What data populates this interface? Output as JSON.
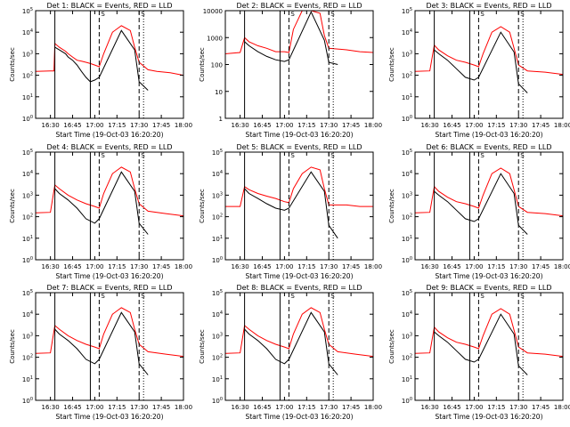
{
  "figure": {
    "background": "#ffffff",
    "event_color": "#000000",
    "lld_color": "#ff0000",
    "xlabel_text": "Start Time (19-Oct-03 16:20:20)",
    "ylabel_text": "Counts/sec",
    "flag_marker": "S"
  },
  "chart_data": [
    {
      "type": "line",
      "title": "Det 1: BLACK = Events, RED = LLD",
      "scale": "log",
      "ylim": [
        1,
        100000
      ],
      "yticks": [
        "10^0",
        "10^1",
        "10^2",
        "10^3",
        "10^4",
        "10^5"
      ],
      "xlim": [
        16.333,
        18.0
      ],
      "xticks": [
        "16:30",
        "16:45",
        "17:00",
        "17:15",
        "17:30",
        "17:45",
        "18:00"
      ],
      "xlabel": "Start Time (19-Oct-03 16:20:20)",
      "ylabel": "Counts/sec",
      "vlines": {
        "solid": [
          16.55,
          16.95
        ],
        "dashed": [
          17.05,
          17.5
        ],
        "dotted": [
          17.55
        ]
      },
      "series": [
        {
          "name": "LLD",
          "color": "#ff0000",
          "x": [
            16.33,
            16.5,
            16.54,
            16.55,
            16.6,
            16.67,
            16.7,
            16.75,
            16.8,
            16.85,
            16.9,
            16.95,
            17.0,
            17.05,
            17.1,
            17.2,
            17.3,
            17.4,
            17.45,
            17.5,
            17.6,
            17.7,
            17.85,
            18.0
          ],
          "y": [
            150,
            160,
            160,
            3000,
            2000,
            1300,
            1000,
            700,
            500,
            450,
            400,
            350,
            300,
            250,
            1000,
            10000,
            20000,
            12000,
            2000,
            400,
            180,
            150,
            130,
            100
          ]
        },
        {
          "name": "Events",
          "color": "#000000",
          "x": [
            16.55,
            16.6,
            16.67,
            16.7,
            16.75,
            16.8,
            16.85,
            16.9,
            16.95,
            17.0,
            17.05,
            17.3,
            17.45,
            17.5,
            17.6
          ],
          "y": [
            2000,
            1500,
            1000,
            700,
            500,
            300,
            150,
            80,
            50,
            60,
            80,
            12000,
            1500,
            50,
            20
          ]
        }
      ]
    },
    {
      "type": "line",
      "title": "Det 2: BLACK = Events, RED = LLD",
      "scale": "log",
      "ylim": [
        1,
        10000
      ],
      "yticks": [
        "1",
        "10",
        "100",
        "1000",
        "10000"
      ],
      "xlim": [
        16.333,
        18.0
      ],
      "xticks": [
        "16:30",
        "16:45",
        "17:00",
        "17:15",
        "17:30",
        "17:45",
        "18:00"
      ],
      "xlabel": "Start Time (19-Oct-03 16:20:20)",
      "ylabel": "Counts/sec",
      "vlines": {
        "solid": [
          16.55,
          16.95
        ],
        "dashed": [
          17.05,
          17.5
        ],
        "dotted": [
          17.55
        ]
      },
      "series": [
        {
          "name": "LLD",
          "color": "#ff0000",
          "x": [
            16.33,
            16.5,
            16.55,
            16.6,
            16.7,
            16.8,
            16.9,
            17.0,
            17.05,
            17.1,
            17.2,
            17.3,
            17.4,
            17.45,
            17.5,
            17.7,
            17.85,
            18.0
          ],
          "y": [
            250,
            280,
            1000,
            700,
            500,
            400,
            300,
            300,
            280,
            2000,
            10000,
            10000,
            8000,
            1200,
            400,
            350,
            300,
            280
          ]
        },
        {
          "name": "Events",
          "color": "#000000",
          "x": [
            16.55,
            16.6,
            16.7,
            16.8,
            16.9,
            17.0,
            17.05,
            17.3,
            17.45,
            17.5,
            17.6
          ],
          "y": [
            700,
            500,
            300,
            200,
            150,
            130,
            150,
            9000,
            800,
            120,
            100
          ]
        }
      ]
    },
    {
      "type": "line",
      "title": "Det 3: BLACK = Events, RED = LLD",
      "scale": "log",
      "ylim": [
        1,
        100000
      ],
      "yticks": [
        "10^0",
        "10^1",
        "10^2",
        "10^3",
        "10^4",
        "10^5"
      ],
      "xlim": [
        16.333,
        18.0
      ],
      "xticks": [
        "16:30",
        "16:45",
        "17:00",
        "17:15",
        "17:30",
        "17:45",
        "18:00"
      ],
      "xlabel": "Start Time (19-Oct-03 16:20:20)",
      "ylabel": "Counts/sec",
      "vlines": {
        "solid": [
          16.55,
          16.95
        ],
        "dashed": [
          17.05,
          17.5
        ],
        "dotted": [
          17.55
        ]
      },
      "series": [
        {
          "name": "LLD",
          "color": "#ff0000",
          "x": [
            16.33,
            16.5,
            16.55,
            16.6,
            16.7,
            16.8,
            16.9,
            17.0,
            17.05,
            17.1,
            17.2,
            17.3,
            17.4,
            17.45,
            17.5,
            17.6,
            17.8,
            18.0
          ],
          "y": [
            150,
            160,
            2500,
            1500,
            800,
            500,
            400,
            300,
            250,
            1000,
            10000,
            18000,
            10000,
            1800,
            300,
            160,
            140,
            110
          ]
        },
        {
          "name": "Events",
          "color": "#000000",
          "x": [
            16.55,
            16.6,
            16.7,
            16.8,
            16.9,
            17.0,
            17.05,
            17.3,
            17.45,
            17.5,
            17.6
          ],
          "y": [
            1500,
            1000,
            500,
            200,
            80,
            60,
            80,
            10000,
            1200,
            40,
            15
          ]
        }
      ]
    },
    {
      "type": "line",
      "title": "Det 4: BLACK = Events, RED = LLD",
      "scale": "log",
      "ylim": [
        1,
        100000
      ],
      "yticks": [
        "10^0",
        "10^1",
        "10^2",
        "10^3",
        "10^4",
        "10^5"
      ],
      "xlim": [
        16.333,
        18.0
      ],
      "xticks": [
        "16:30",
        "16:45",
        "17:00",
        "17:15",
        "17:30",
        "17:45",
        "18:00"
      ],
      "xlabel": "Start Time (19-Oct-03 16:20:20)",
      "ylabel": "Counts/sec",
      "vlines": {
        "solid": [
          16.55,
          16.95
        ],
        "dashed": [
          17.05,
          17.5
        ],
        "dotted": [
          17.55
        ]
      },
      "series": [
        {
          "name": "LLD",
          "color": "#ff0000",
          "x": [
            16.33,
            16.5,
            16.55,
            16.6,
            16.7,
            16.8,
            16.9,
            17.0,
            17.05,
            17.1,
            17.2,
            17.3,
            17.4,
            17.45,
            17.5,
            17.6,
            17.8,
            18.0
          ],
          "y": [
            150,
            160,
            3000,
            2000,
            1000,
            600,
            400,
            300,
            250,
            1200,
            10000,
            20000,
            12000,
            2000,
            400,
            180,
            140,
            110
          ]
        },
        {
          "name": "Events",
          "color": "#000000",
          "x": [
            16.55,
            16.6,
            16.7,
            16.8,
            16.9,
            17.0,
            17.05,
            17.3,
            17.45,
            17.5,
            17.6
          ],
          "y": [
            2000,
            1200,
            600,
            250,
            80,
            50,
            80,
            12000,
            1500,
            50,
            15
          ]
        }
      ]
    },
    {
      "type": "line",
      "title": "Det 5: BLACK = Events, RED = LLD",
      "scale": "log",
      "ylim": [
        1,
        100000
      ],
      "yticks": [
        "10^0",
        "10^1",
        "10^2",
        "10^3",
        "10^4",
        "10^5"
      ],
      "xlim": [
        16.333,
        18.0
      ],
      "xticks": [
        "16:30",
        "16:45",
        "17:00",
        "17:15",
        "17:30",
        "17:45",
        "18:00"
      ],
      "xlabel": "Start Time (19-Oct-03 16:20:20)",
      "ylabel": "Counts/sec",
      "vlines": {
        "solid": [
          16.55,
          16.95
        ],
        "dashed": [
          17.05,
          17.5
        ],
        "dotted": [
          17.55
        ]
      },
      "series": [
        {
          "name": "LLD",
          "color": "#ff0000",
          "x": [
            16.33,
            16.5,
            16.55,
            16.6,
            16.7,
            16.8,
            16.9,
            17.0,
            17.05,
            17.1,
            17.2,
            17.3,
            17.4,
            17.45,
            17.5,
            17.7,
            17.85,
            18.0
          ],
          "y": [
            300,
            300,
            2500,
            1800,
            1200,
            900,
            700,
            500,
            450,
            2000,
            10000,
            20000,
            15000,
            2000,
            350,
            350,
            300,
            300
          ]
        },
        {
          "name": "Events",
          "color": "#000000",
          "x": [
            16.55,
            16.6,
            16.7,
            16.8,
            16.9,
            17.0,
            17.05,
            17.3,
            17.45,
            17.5,
            17.6
          ],
          "y": [
            2000,
            1200,
            700,
            400,
            250,
            200,
            250,
            12000,
            1500,
            40,
            10
          ]
        }
      ]
    },
    {
      "type": "line",
      "title": "Det 6: BLACK = Events, RED = LLD",
      "scale": "log",
      "ylim": [
        1,
        100000
      ],
      "yticks": [
        "10^0",
        "10^1",
        "10^2",
        "10^3",
        "10^4",
        "10^5"
      ],
      "xlim": [
        16.333,
        18.0
      ],
      "xticks": [
        "16:30",
        "16:45",
        "17:00",
        "17:15",
        "17:30",
        "17:45",
        "18:00"
      ],
      "xlabel": "Start Time (19-Oct-03 16:20:20)",
      "ylabel": "Counts/sec",
      "vlines": {
        "solid": [
          16.55,
          16.95
        ],
        "dashed": [
          17.05,
          17.5
        ],
        "dotted": [
          17.55
        ]
      },
      "series": [
        {
          "name": "LLD",
          "color": "#ff0000",
          "x": [
            16.33,
            16.5,
            16.55,
            16.6,
            16.7,
            16.8,
            16.9,
            17.0,
            17.05,
            17.1,
            17.2,
            17.3,
            17.4,
            17.45,
            17.5,
            17.6,
            17.8,
            18.0
          ],
          "y": [
            150,
            160,
            2500,
            1500,
            800,
            500,
            400,
            300,
            250,
            1000,
            10000,
            18000,
            10000,
            1800,
            300,
            160,
            140,
            110
          ]
        },
        {
          "name": "Events",
          "color": "#000000",
          "x": [
            16.55,
            16.6,
            16.7,
            16.8,
            16.9,
            17.0,
            17.05,
            17.3,
            17.45,
            17.5,
            17.6
          ],
          "y": [
            1500,
            1000,
            500,
            200,
            80,
            60,
            80,
            10000,
            1200,
            40,
            15
          ]
        }
      ]
    },
    {
      "type": "line",
      "title": "Det 7: BLACK = Events, RED = LLD",
      "scale": "log",
      "ylim": [
        1,
        100000
      ],
      "yticks": [
        "10^0",
        "10^1",
        "10^2",
        "10^3",
        "10^4",
        "10^5"
      ],
      "xlim": [
        16.333,
        18.0
      ],
      "xticks": [
        "16:30",
        "16:45",
        "17:00",
        "17:15",
        "17:30",
        "17:45",
        "18:00"
      ],
      "xlabel": "Start Time (19-Oct-03 16:20:20)",
      "ylabel": "Counts/sec",
      "vlines": {
        "solid": [
          16.55,
          16.95
        ],
        "dashed": [
          17.05,
          17.5
        ],
        "dotted": [
          17.55
        ]
      },
      "series": [
        {
          "name": "LLD",
          "color": "#ff0000",
          "x": [
            16.33,
            16.5,
            16.55,
            16.6,
            16.7,
            16.8,
            16.9,
            17.0,
            17.05,
            17.1,
            17.2,
            17.3,
            17.4,
            17.45,
            17.5,
            17.6,
            17.8,
            18.0
          ],
          "y": [
            150,
            160,
            3000,
            2000,
            1000,
            600,
            400,
            300,
            250,
            1200,
            10000,
            20000,
            12000,
            2000,
            400,
            180,
            140,
            110
          ]
        },
        {
          "name": "Events",
          "color": "#000000",
          "x": [
            16.55,
            16.6,
            16.7,
            16.8,
            16.9,
            17.0,
            17.05,
            17.3,
            17.45,
            17.5,
            17.6
          ],
          "y": [
            2000,
            1200,
            600,
            250,
            80,
            50,
            80,
            12000,
            1500,
            50,
            15
          ]
        }
      ]
    },
    {
      "type": "line",
      "title": "Det 8: BLACK = Events, RED = LLD",
      "scale": "log",
      "ylim": [
        1,
        100000
      ],
      "yticks": [
        "10^0",
        "10^1",
        "10^2",
        "10^3",
        "10^4",
        "10^5"
      ],
      "xlim": [
        16.333,
        18.0
      ],
      "xticks": [
        "16:30",
        "16:45",
        "17:00",
        "17:15",
        "17:30",
        "17:45",
        "18:00"
      ],
      "xlabel": "Start Time (19-Oct-03 16:20:20)",
      "ylabel": "Counts/sec",
      "vlines": {
        "solid": [
          16.55,
          16.95
        ],
        "dashed": [
          17.05,
          17.5
        ],
        "dotted": [
          17.55
        ]
      },
      "series": [
        {
          "name": "LLD",
          "color": "#ff0000",
          "x": [
            16.33,
            16.5,
            16.55,
            16.6,
            16.7,
            16.8,
            16.9,
            17.0,
            17.05,
            17.1,
            17.2,
            17.3,
            17.4,
            17.45,
            17.5,
            17.6,
            17.8,
            18.0
          ],
          "y": [
            150,
            160,
            3000,
            2000,
            1000,
            600,
            400,
            300,
            250,
            1200,
            10000,
            20000,
            12000,
            2000,
            400,
            180,
            140,
            110
          ]
        },
        {
          "name": "Events",
          "color": "#000000",
          "x": [
            16.55,
            16.6,
            16.7,
            16.8,
            16.9,
            17.0,
            17.05,
            17.3,
            17.45,
            17.5,
            17.6
          ],
          "y": [
            2000,
            1200,
            600,
            250,
            80,
            50,
            80,
            12000,
            1500,
            50,
            15
          ]
        }
      ]
    },
    {
      "type": "line",
      "title": "Det 9: BLACK = Events, RED = LLD",
      "scale": "log",
      "ylim": [
        1,
        100000
      ],
      "yticks": [
        "10^0",
        "10^1",
        "10^2",
        "10^3",
        "10^4",
        "10^5"
      ],
      "xlim": [
        16.333,
        18.0
      ],
      "xticks": [
        "16:30",
        "16:45",
        "17:00",
        "17:15",
        "17:30",
        "17:45",
        "18:00"
      ],
      "xlabel": "Start Time (19-Oct-03 16:20:20)",
      "ylabel": "Counts/sec",
      "vlines": {
        "solid": [
          16.55,
          16.95
        ],
        "dashed": [
          17.05,
          17.5
        ],
        "dotted": [
          17.55
        ]
      },
      "series": [
        {
          "name": "LLD",
          "color": "#ff0000",
          "x": [
            16.33,
            16.5,
            16.55,
            16.6,
            16.7,
            16.8,
            16.9,
            17.0,
            17.05,
            17.1,
            17.2,
            17.3,
            17.4,
            17.45,
            17.5,
            17.6,
            17.8,
            18.0
          ],
          "y": [
            150,
            160,
            2500,
            1500,
            800,
            500,
            400,
            300,
            250,
            1000,
            10000,
            18000,
            10000,
            1800,
            300,
            160,
            140,
            110
          ]
        },
        {
          "name": "Events",
          "color": "#000000",
          "x": [
            16.55,
            16.6,
            16.7,
            16.8,
            16.9,
            17.0,
            17.05,
            17.3,
            17.45,
            17.5,
            17.6
          ],
          "y": [
            1500,
            1000,
            500,
            200,
            80,
            60,
            80,
            10000,
            1200,
            40,
            15
          ]
        }
      ]
    }
  ]
}
